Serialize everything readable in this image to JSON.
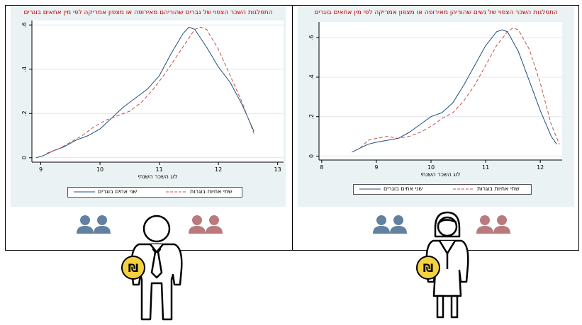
{
  "colors": {
    "brothers": "#1f4e79",
    "sisters": "#c0504d",
    "title": "#c00000",
    "panel_bg": "#eaf2f3",
    "icon_blue": "#62809f",
    "icon_rose": "#b97a7e",
    "coin": "#f5d142"
  },
  "icons": {
    "brothers_pair": "two-people-icon",
    "sisters_pair": "two-people-icon",
    "man": "businessman-icon",
    "woman": "businesswoman-icon",
    "coin": "shekel-coin-icon"
  },
  "coin_symbol": "₪",
  "chart_data": [
    {
      "type": "line",
      "title": "התפלגות השכר הצפוי של גברים שהוריהם מאירופה או מצפון אמריקה לפי מין אחאים בוגרים",
      "xlabel": "לוג השכר השנתי",
      "ylabel": "",
      "xlim": [
        8.85,
        13.1
      ],
      "ylim": [
        -0.02,
        0.62
      ],
      "xticks": [
        9,
        10,
        11,
        12,
        13
      ],
      "yticks": [
        0,
        0.2,
        0.4,
        0.6
      ],
      "ytick_labels": [
        "0",
        ".2",
        ".4",
        ".6"
      ],
      "grid": true,
      "legend_position": "bottom",
      "series": [
        {
          "name": "שני אחים בוגרים",
          "style": "solid",
          "x": [
            8.92,
            9.05,
            9.2,
            9.4,
            9.6,
            9.8,
            10.0,
            10.2,
            10.4,
            10.6,
            10.8,
            11.0,
            11.2,
            11.4,
            11.5,
            11.6,
            11.8,
            12.0,
            12.2,
            12.4,
            12.6
          ],
          "y": [
            0.0,
            0.01,
            0.03,
            0.05,
            0.08,
            0.1,
            0.13,
            0.18,
            0.23,
            0.27,
            0.31,
            0.37,
            0.47,
            0.56,
            0.59,
            0.58,
            0.5,
            0.41,
            0.34,
            0.24,
            0.12
          ]
        },
        {
          "name": "שתי אחיות בוגרות",
          "style": "dashed",
          "x": [
            9.1,
            9.3,
            9.5,
            9.7,
            9.9,
            10.1,
            10.3,
            10.5,
            10.7,
            10.9,
            11.1,
            11.3,
            11.5,
            11.6,
            11.7,
            11.8,
            12.0,
            12.2,
            12.4,
            12.6
          ],
          "y": [
            0.02,
            0.04,
            0.07,
            0.1,
            0.14,
            0.17,
            0.19,
            0.21,
            0.25,
            0.31,
            0.38,
            0.46,
            0.54,
            0.58,
            0.59,
            0.58,
            0.49,
            0.37,
            0.25,
            0.11
          ]
        }
      ]
    },
    {
      "type": "line",
      "title": "התפלגות השכר הצפוי של נשים שהוריהן מאירופה או מצפון אמריקה לפי מין אחאים בוגרים",
      "xlabel": "לוג השכר השנתי",
      "ylabel": "",
      "xlim": [
        7.95,
        12.4
      ],
      "ylim": [
        -0.02,
        0.68
      ],
      "xticks": [
        8,
        9,
        10,
        11,
        12
      ],
      "yticks": [
        0,
        0.2,
        0.4,
        0.6
      ],
      "ytick_labels": [
        "0",
        ".2",
        ".4",
        ".6"
      ],
      "grid": true,
      "legend_position": "bottom",
      "series": [
        {
          "name": "שני אחים בוגרים",
          "style": "solid",
          "x": [
            8.55,
            8.7,
            8.85,
            9.0,
            9.2,
            9.4,
            9.6,
            9.8,
            10.0,
            10.2,
            10.4,
            10.6,
            10.8,
            11.0,
            11.2,
            11.3,
            11.4,
            11.6,
            11.8,
            12.0,
            12.2,
            12.3
          ],
          "y": [
            0.02,
            0.04,
            0.06,
            0.07,
            0.08,
            0.09,
            0.12,
            0.16,
            0.2,
            0.22,
            0.27,
            0.36,
            0.46,
            0.56,
            0.63,
            0.64,
            0.63,
            0.53,
            0.38,
            0.23,
            0.1,
            0.06
          ]
        },
        {
          "name": "שתי אחיות בוגרות",
          "style": "dashed",
          "x": [
            8.7,
            8.85,
            9.0,
            9.2,
            9.4,
            9.6,
            9.8,
            10.0,
            10.2,
            10.4,
            10.6,
            10.8,
            11.0,
            11.2,
            11.4,
            11.5,
            11.6,
            11.8,
            12.0,
            12.2,
            12.35
          ],
          "y": [
            0.04,
            0.08,
            0.09,
            0.1,
            0.09,
            0.1,
            0.12,
            0.15,
            0.19,
            0.22,
            0.28,
            0.36,
            0.46,
            0.56,
            0.63,
            0.65,
            0.64,
            0.54,
            0.37,
            0.16,
            0.06
          ]
        }
      ]
    }
  ]
}
